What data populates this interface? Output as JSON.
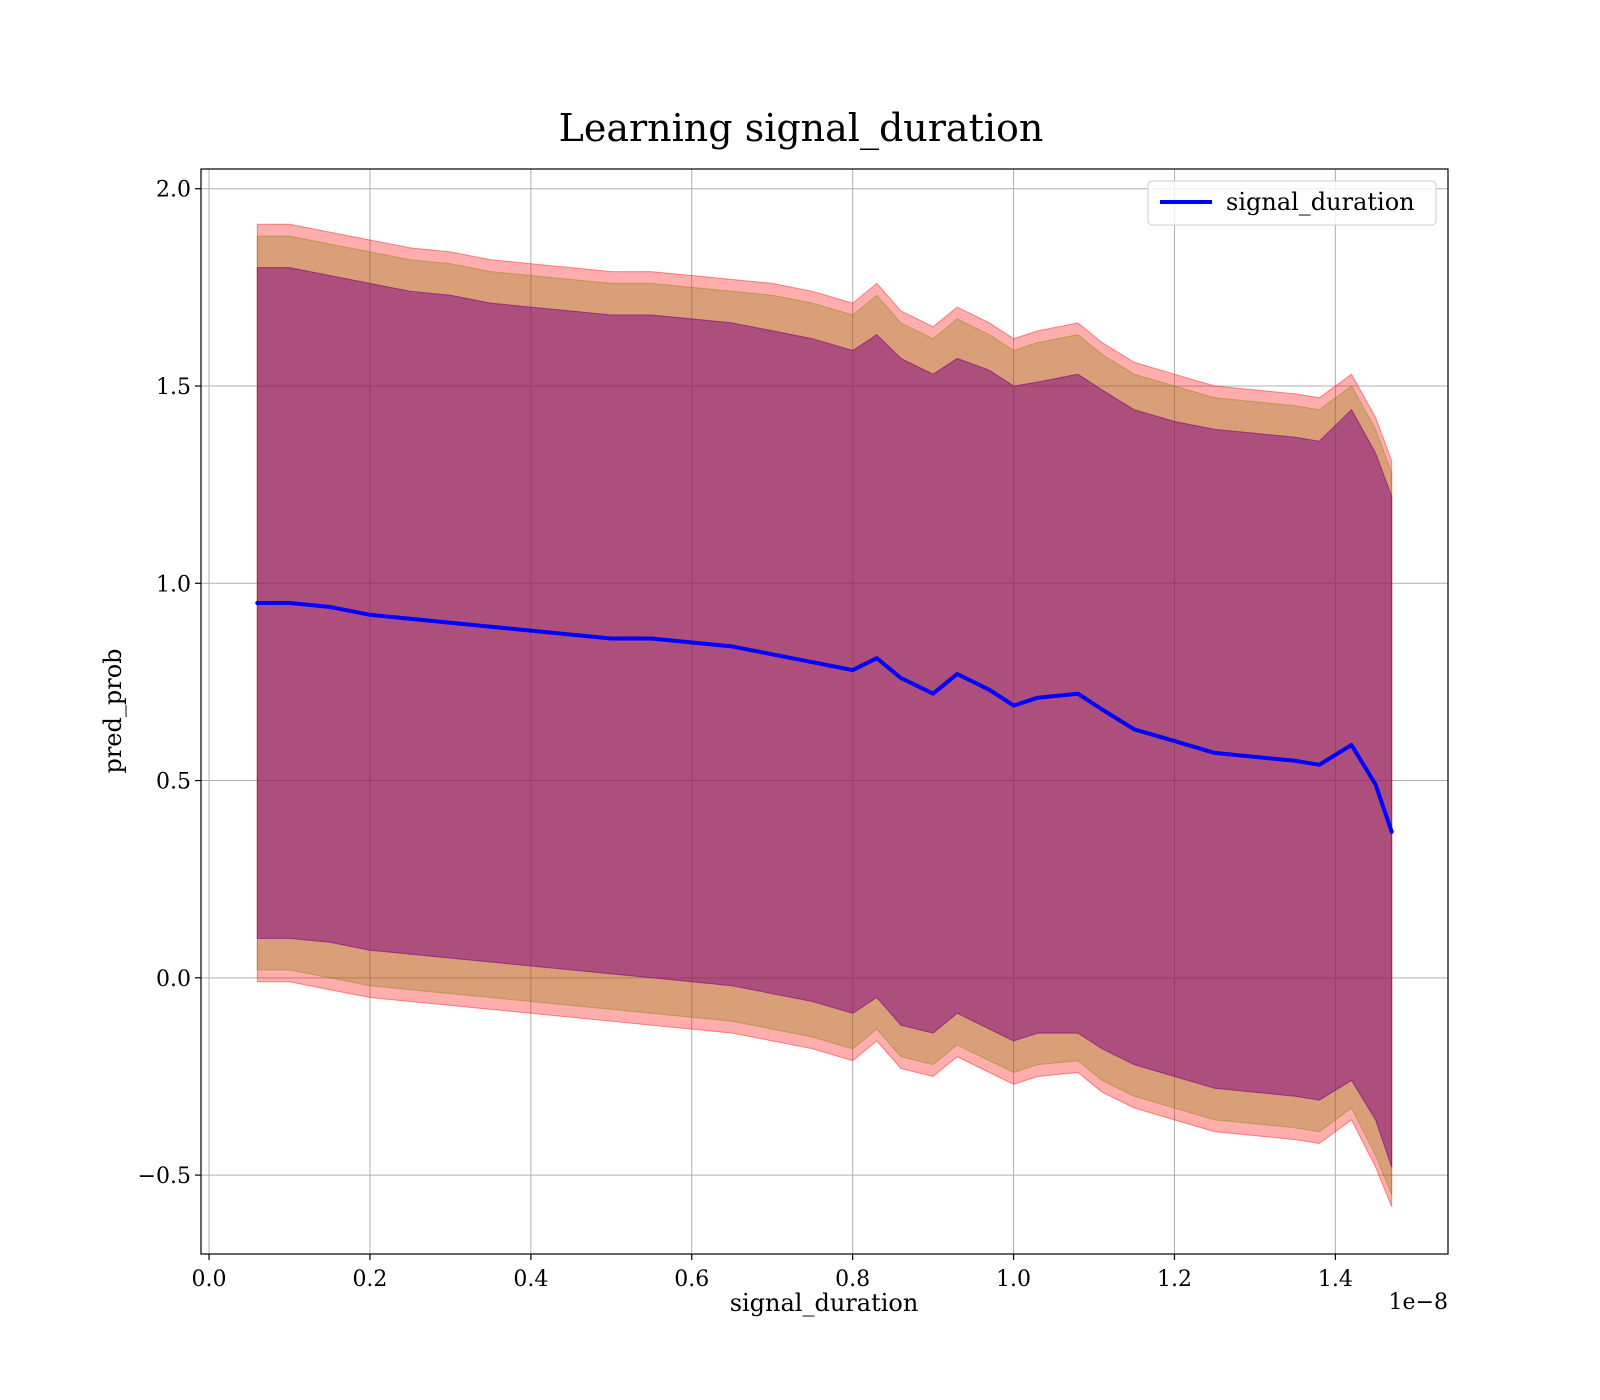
{
  "chart_data": {
    "type": "line",
    "title": "Learning signal_duration",
    "xlabel": "signal_duration",
    "ylabel": "pred_prob",
    "x_offset_text": "1e−8",
    "xlim": [
      -0.01,
      1.54
    ],
    "ylim": [
      -0.7,
      2.05
    ],
    "x_ticks": [
      0.0,
      0.2,
      0.4,
      0.6,
      0.8,
      1.0,
      1.2,
      1.4
    ],
    "x_tick_labels": [
      "0.0",
      "0.2",
      "0.4",
      "0.6",
      "0.8",
      "1.0",
      "1.2",
      "1.4"
    ],
    "y_ticks": [
      -0.5,
      0.0,
      0.5,
      1.0,
      1.5,
      2.0
    ],
    "y_tick_labels": [
      "−0.5",
      "0.0",
      "0.5",
      "1.0",
      "1.5",
      "2.0"
    ],
    "grid": true,
    "legend": {
      "position": "top-right",
      "entries": [
        "signal_duration"
      ]
    },
    "series": [
      {
        "name": "signal_duration",
        "color": "#0000ff",
        "x": [
          0.06,
          0.1,
          0.15,
          0.2,
          0.25,
          0.3,
          0.35,
          0.4,
          0.45,
          0.5,
          0.55,
          0.6,
          0.65,
          0.7,
          0.75,
          0.8,
          0.83,
          0.86,
          0.9,
          0.93,
          0.97,
          1.0,
          1.03,
          1.08,
          1.11,
          1.15,
          1.2,
          1.25,
          1.3,
          1.35,
          1.38,
          1.42,
          1.45,
          1.47
        ],
        "y": [
          0.95,
          0.95,
          0.94,
          0.92,
          0.91,
          0.9,
          0.89,
          0.88,
          0.87,
          0.86,
          0.86,
          0.85,
          0.84,
          0.82,
          0.8,
          0.78,
          0.81,
          0.76,
          0.72,
          0.77,
          0.73,
          0.69,
          0.71,
          0.72,
          0.68,
          0.63,
          0.6,
          0.57,
          0.56,
          0.55,
          0.54,
          0.59,
          0.49,
          0.37
        ]
      }
    ],
    "bands": [
      {
        "color": "#ff0000",
        "opacity": 0.32,
        "upper": [
          1.91,
          1.91,
          1.89,
          1.87,
          1.85,
          1.84,
          1.82,
          1.81,
          1.8,
          1.79,
          1.79,
          1.78,
          1.77,
          1.76,
          1.74,
          1.71,
          1.76,
          1.69,
          1.65,
          1.7,
          1.66,
          1.62,
          1.64,
          1.66,
          1.61,
          1.56,
          1.53,
          1.5,
          1.49,
          1.48,
          1.47,
          1.53,
          1.42,
          1.31
        ],
        "lower": [
          -0.01,
          -0.01,
          -0.03,
          -0.05,
          -0.06,
          -0.07,
          -0.08,
          -0.09,
          -0.1,
          -0.11,
          -0.12,
          -0.13,
          -0.14,
          -0.16,
          -0.18,
          -0.21,
          -0.16,
          -0.23,
          -0.25,
          -0.2,
          -0.24,
          -0.27,
          -0.25,
          -0.24,
          -0.29,
          -0.33,
          -0.36,
          -0.39,
          -0.4,
          -0.41,
          -0.42,
          -0.36,
          -0.48,
          -0.58
        ]
      },
      {
        "color": "#808000",
        "opacity": 0.3,
        "upper": [
          1.88,
          1.88,
          1.86,
          1.84,
          1.82,
          1.81,
          1.79,
          1.78,
          1.77,
          1.76,
          1.76,
          1.75,
          1.74,
          1.73,
          1.71,
          1.68,
          1.73,
          1.66,
          1.62,
          1.67,
          1.63,
          1.59,
          1.61,
          1.63,
          1.58,
          1.53,
          1.5,
          1.47,
          1.46,
          1.45,
          1.44,
          1.5,
          1.39,
          1.28
        ],
        "lower": [
          0.02,
          0.02,
          0.0,
          -0.02,
          -0.03,
          -0.04,
          -0.05,
          -0.06,
          -0.07,
          -0.08,
          -0.09,
          -0.1,
          -0.11,
          -0.13,
          -0.15,
          -0.18,
          -0.13,
          -0.2,
          -0.22,
          -0.17,
          -0.21,
          -0.24,
          -0.22,
          -0.21,
          -0.26,
          -0.3,
          -0.33,
          -0.36,
          -0.37,
          -0.38,
          -0.39,
          -0.33,
          -0.45,
          -0.55
        ]
      },
      {
        "color": "#800080",
        "opacity": 0.5,
        "upper": [
          1.8,
          1.8,
          1.78,
          1.76,
          1.74,
          1.73,
          1.71,
          1.7,
          1.69,
          1.68,
          1.68,
          1.67,
          1.66,
          1.64,
          1.62,
          1.59,
          1.63,
          1.57,
          1.53,
          1.57,
          1.54,
          1.5,
          1.51,
          1.53,
          1.49,
          1.44,
          1.41,
          1.39,
          1.38,
          1.37,
          1.36,
          1.44,
          1.33,
          1.22
        ],
        "lower": [
          0.1,
          0.1,
          0.09,
          0.07,
          0.06,
          0.05,
          0.04,
          0.03,
          0.02,
          0.01,
          0.0,
          -0.01,
          -0.02,
          -0.04,
          -0.06,
          -0.09,
          -0.05,
          -0.12,
          -0.14,
          -0.09,
          -0.13,
          -0.16,
          -0.14,
          -0.14,
          -0.18,
          -0.22,
          -0.25,
          -0.28,
          -0.29,
          -0.3,
          -0.31,
          -0.26,
          -0.36,
          -0.48
        ]
      }
    ]
  }
}
